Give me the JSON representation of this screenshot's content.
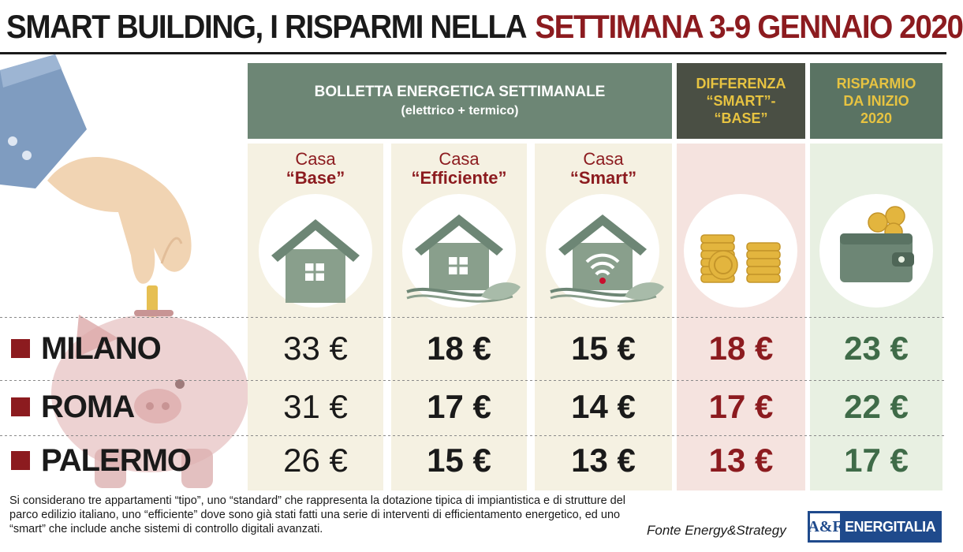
{
  "title": {
    "part1": "SMART BUILDING, I RISPARMI NELLA",
    "part2": "SETTIMANA 3-9 GENNAIO 2020"
  },
  "header": {
    "main_line1": "BOLLETTA ENERGETICA SETTIMANALE",
    "main_line2": "(elettrico + termico)",
    "diff": "DIFFERENZA\n“SMART”-\n“BASE”",
    "save": "RISPARMIO\nDA INIZIO\n2020"
  },
  "columns": [
    {
      "prefix": "Casa",
      "name": "“Base”",
      "icon": "house-icon"
    },
    {
      "prefix": "Casa",
      "name": "“Efficiente”",
      "icon": "efficient-house-icon"
    },
    {
      "prefix": "Casa",
      "name": "“Smart”",
      "icon": "smart-house-icon"
    }
  ],
  "icons": {
    "diff": "coins-icon",
    "save": "wallet-icon"
  },
  "rows": [
    {
      "city": "MILANO",
      "base": "33 €",
      "efficiente": "18 €",
      "smart": "15 €",
      "diff": "18 €",
      "save": "23 €"
    },
    {
      "city": "ROMA",
      "base": "31 €",
      "efficiente": "17 €",
      "smart": "14 €",
      "diff": "17 €",
      "save": "22 €"
    },
    {
      "city": "PALERMO",
      "base": "26 €",
      "efficiente": "15 €",
      "smart": "13 €",
      "diff": "13 €",
      "save": "17 €"
    }
  ],
  "note": "Si considerano tre appartamenti “tipo”, uno “standard” che rappresenta la dotazione tipica di impiantistica e di strutture del parco edilizio italiano, uno “efficiente” dove sono già stati fatti una serie di interventi di efficientamento energetico, ed uno “smart” che include anche sistemi di controllo digitali avanzati.",
  "source": "Fonte Energy&Strategy",
  "logo": {
    "mark": "A&F",
    "name": "ENERGITALIA"
  },
  "colors": {
    "dark_red": "#8c1b1f",
    "green": "#3f6b48",
    "header_green": "#6d8675",
    "gold": "#e7c341"
  }
}
